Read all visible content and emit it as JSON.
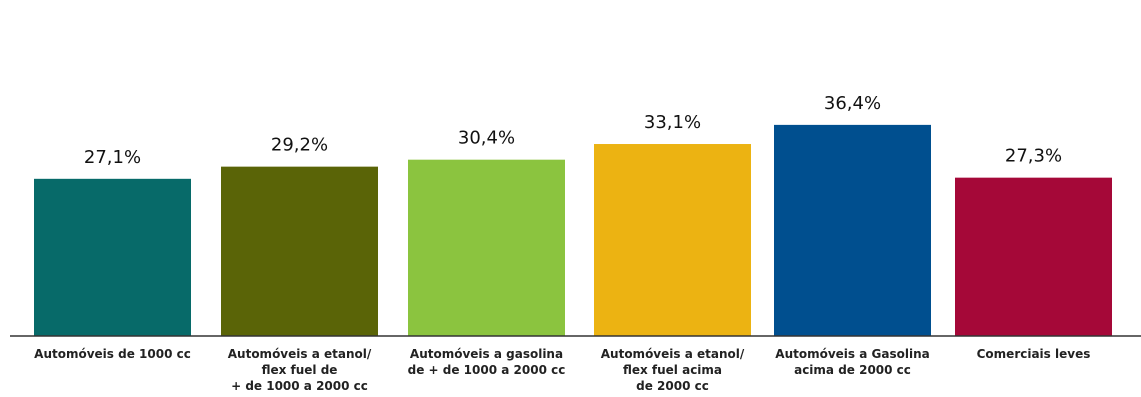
{
  "chart_data": {
    "type": "bar",
    "categories": [
      "Automóveis de 1000 cc",
      "Automóveis a etanol/\nflex fuel de\n+ de 1000 a 2000 cc",
      "Automóveis a gasolina\nde + de 1000 a 2000 cc",
      "Automóveis a etanol/\nflex fuel acima\nde 2000 cc",
      "Automóveis a Gasolina\nacima de 2000 cc",
      "Comerciais leves"
    ],
    "values": [
      27.1,
      29.2,
      30.4,
      33.1,
      36.4,
      27.3
    ],
    "value_labels": [
      "27,1%",
      "29,2%",
      "30,4%",
      "33,1%",
      "36,4%",
      "27,3%"
    ],
    "colors": [
      "#076a69",
      "#5a6407",
      "#8bc43f",
      "#ecb312",
      "#004f8f",
      "#a50838"
    ],
    "title": "",
    "xlabel": "",
    "ylabel": "",
    "grid": false
  }
}
